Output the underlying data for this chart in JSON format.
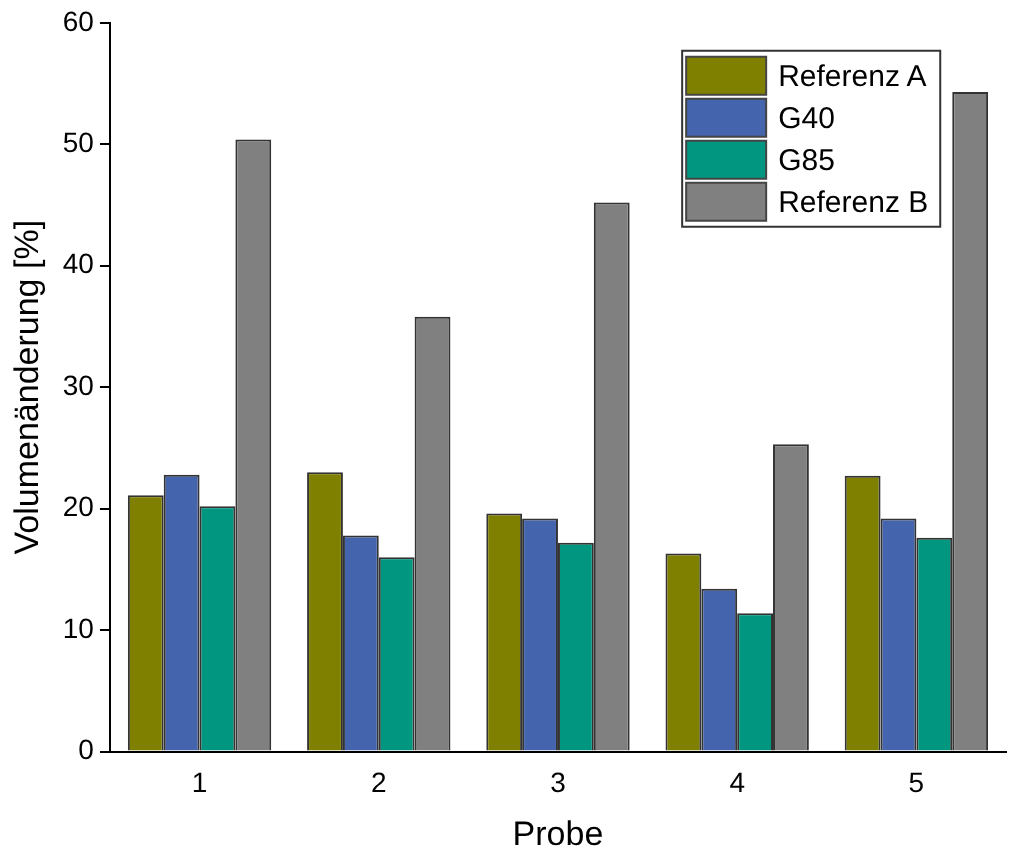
{
  "chart_data": {
    "type": "bar",
    "xlabel": "Probe",
    "ylabel": "Volumenänderung [%]",
    "categories": [
      "1",
      "2",
      "3",
      "4",
      "5"
    ],
    "series": [
      {
        "name": "Referenz A",
        "color": "#808000",
        "values": [
          21.1,
          23.0,
          19.6,
          16.3,
          22.7
        ]
      },
      {
        "name": "G40",
        "color": "#4464ad",
        "values": [
          22.8,
          17.8,
          19.2,
          13.4,
          19.2
        ]
      },
      {
        "name": "G85",
        "color": "#009680",
        "values": [
          20.2,
          16.0,
          17.2,
          11.4,
          17.6
        ]
      },
      {
        "name": "Referenz B",
        "color": "#808080",
        "values": [
          50.4,
          35.8,
          45.2,
          25.3,
          54.3
        ]
      }
    ],
    "ylim": [
      0,
      60
    ],
    "yticks": [
      0,
      10,
      20,
      30,
      40,
      50,
      60
    ],
    "grid": false,
    "legend": "top right"
  }
}
